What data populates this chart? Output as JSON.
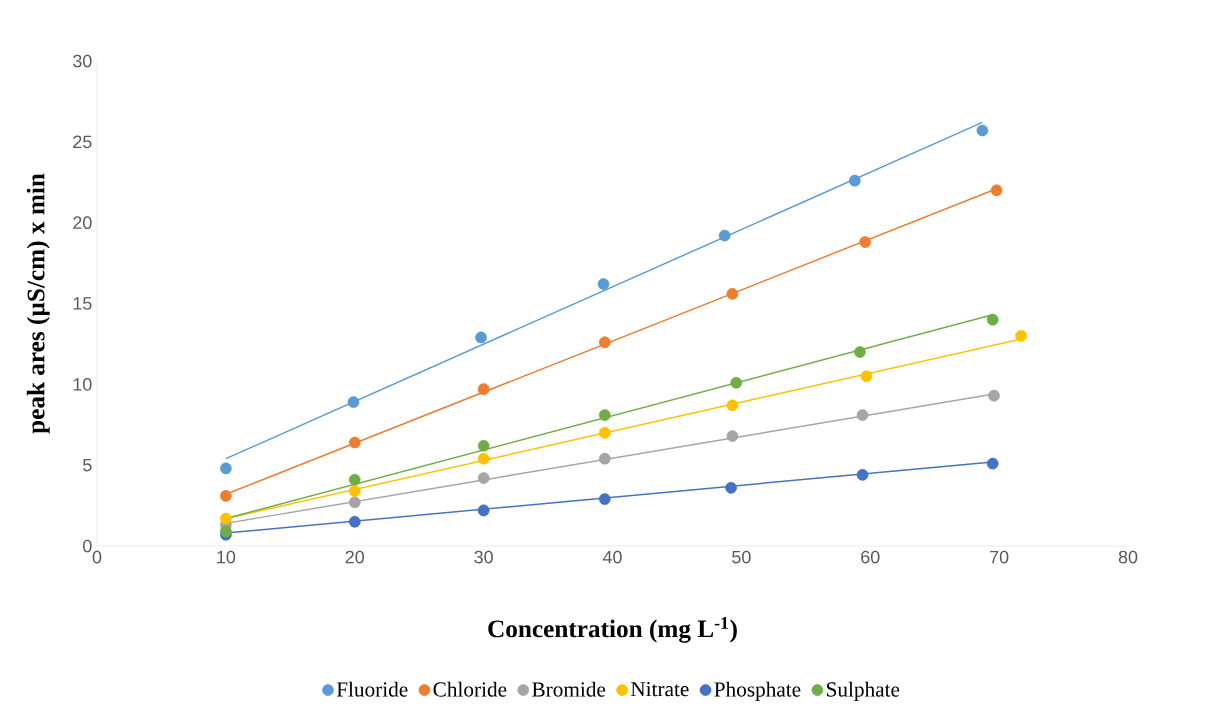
{
  "chart_data": {
    "type": "scatter",
    "xlabel": "Concentration (mg L$^{-1}$)",
    "ylabel": "peak ares (µS/cm) x min",
    "xlim": [
      0,
      80
    ],
    "ylim": [
      0,
      30
    ],
    "xticks": [
      0,
      10,
      20,
      30,
      40,
      50,
      60,
      70,
      80
    ],
    "yticks": [
      0,
      5,
      10,
      15,
      20,
      25,
      30
    ],
    "legend": "bottom",
    "series": [
      {
        "name": "Fluoride",
        "marker": "circle",
        "color": "#5b9bd5",
        "x": [
          10,
          19.9,
          29.8,
          39.3,
          48.7,
          58.8,
          68.7
        ],
        "values": [
          4.8,
          8.9,
          12.9,
          16.2,
          19.2,
          22.6,
          25.7
        ]
      },
      {
        "name": "Chloride",
        "marker": "circle",
        "color": "#ed7d31",
        "x": [
          10,
          20,
          30,
          39.4,
          49.3,
          59.6,
          69.8
        ],
        "values": [
          3.1,
          6.4,
          9.7,
          12.6,
          15.6,
          18.8,
          22.0
        ]
      },
      {
        "name": "Bromide",
        "marker": "circle",
        "color": "#a5a5a5",
        "x": [
          10,
          20,
          30,
          39.4,
          49.3,
          59.4,
          69.6
        ],
        "values": [
          1.3,
          2.7,
          4.2,
          5.4,
          6.8,
          8.1,
          9.3
        ]
      },
      {
        "name": "Nitrate",
        "marker": "circle",
        "color": "#ffc000",
        "x": [
          10,
          20,
          30,
          39.4,
          49.3,
          59.7,
          71.7
        ],
        "values": [
          1.7,
          3.4,
          5.4,
          7.0,
          8.7,
          10.5,
          13.0
        ]
      },
      {
        "name": "Phosphate",
        "marker": "circle",
        "color": "#4472c4",
        "x": [
          10,
          20,
          30,
          39.4,
          49.2,
          59.4,
          69.5
        ],
        "values": [
          0.7,
          1.5,
          2.2,
          2.9,
          3.6,
          4.4,
          5.1
        ]
      },
      {
        "name": "Sulphate",
        "marker": "circle",
        "color": "#70ad47",
        "x": [
          10,
          20,
          30,
          39.4,
          49.6,
          59.2,
          69.5
        ],
        "values": [
          0.9,
          4.1,
          6.2,
          8.1,
          10.1,
          12.0,
          14.0
        ]
      },
      {
        "type": "line",
        "marker": "none",
        "color": "#5b9bd5",
        "x": [
          10,
          68.7
        ],
        "values": [
          5.4,
          26.2
        ]
      },
      {
        "type": "line",
        "marker": "none",
        "color": "#ed7d31",
        "x": [
          10,
          69.8
        ],
        "values": [
          3.2,
          22.1
        ]
      },
      {
        "type": "line",
        "marker": "none",
        "color": "#a5a5a5",
        "x": [
          10,
          69.6
        ],
        "values": [
          1.4,
          9.4
        ]
      },
      {
        "type": "line",
        "marker": "none",
        "color": "#ffc000",
        "x": [
          10,
          71.7
        ],
        "values": [
          1.7,
          12.8
        ]
      },
      {
        "type": "line",
        "marker": "none",
        "color": "#4472c4",
        "x": [
          10,
          69.5
        ],
        "values": [
          0.8,
          5.2
        ]
      },
      {
        "type": "line",
        "marker": "none",
        "color": "#70ad47",
        "x": [
          10,
          69.5
        ],
        "values": [
          1.7,
          14.3
        ]
      }
    ]
  }
}
